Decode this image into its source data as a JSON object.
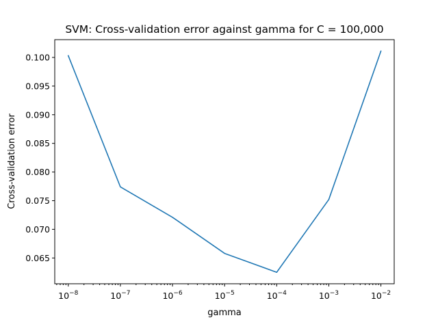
{
  "chart_data": {
    "type": "line",
    "title": "SVM: Cross-validation error against gamma for C = 100,000",
    "xlabel": "gamma",
    "ylabel": "Cross-validation error",
    "xscale": "log",
    "xlim": [
      5.5e-09,
      0.018
    ],
    "ylim": [
      0.0605,
      0.1031
    ],
    "grid": false,
    "legend": "none",
    "x_ticks": [
      {
        "value": 1e-08,
        "base": "10",
        "exp": "−8"
      },
      {
        "value": 1e-07,
        "base": "10",
        "exp": "−7"
      },
      {
        "value": 1e-06,
        "base": "10",
        "exp": "−6"
      },
      {
        "value": 1e-05,
        "base": "10",
        "exp": "−5"
      },
      {
        "value": 0.0001,
        "base": "10",
        "exp": "−4"
      },
      {
        "value": 0.001,
        "base": "10",
        "exp": "−3"
      },
      {
        "value": 0.01,
        "base": "10",
        "exp": "−2"
      }
    ],
    "y_ticks": [
      0.065,
      0.07,
      0.075,
      0.08,
      0.085,
      0.09,
      0.095,
      0.1
    ],
    "y_tick_labels": [
      "0.065",
      "0.070",
      "0.075",
      "0.080",
      "0.085",
      "0.090",
      "0.095",
      "0.100"
    ],
    "series": [
      {
        "color": "#1f77b4",
        "x": [
          1e-08,
          1e-07,
          1e-06,
          1e-05,
          0.0001,
          0.001,
          0.01
        ],
        "y": [
          0.1003,
          0.0774,
          0.0721,
          0.0658,
          0.0625,
          0.0752,
          0.1011
        ]
      }
    ]
  }
}
